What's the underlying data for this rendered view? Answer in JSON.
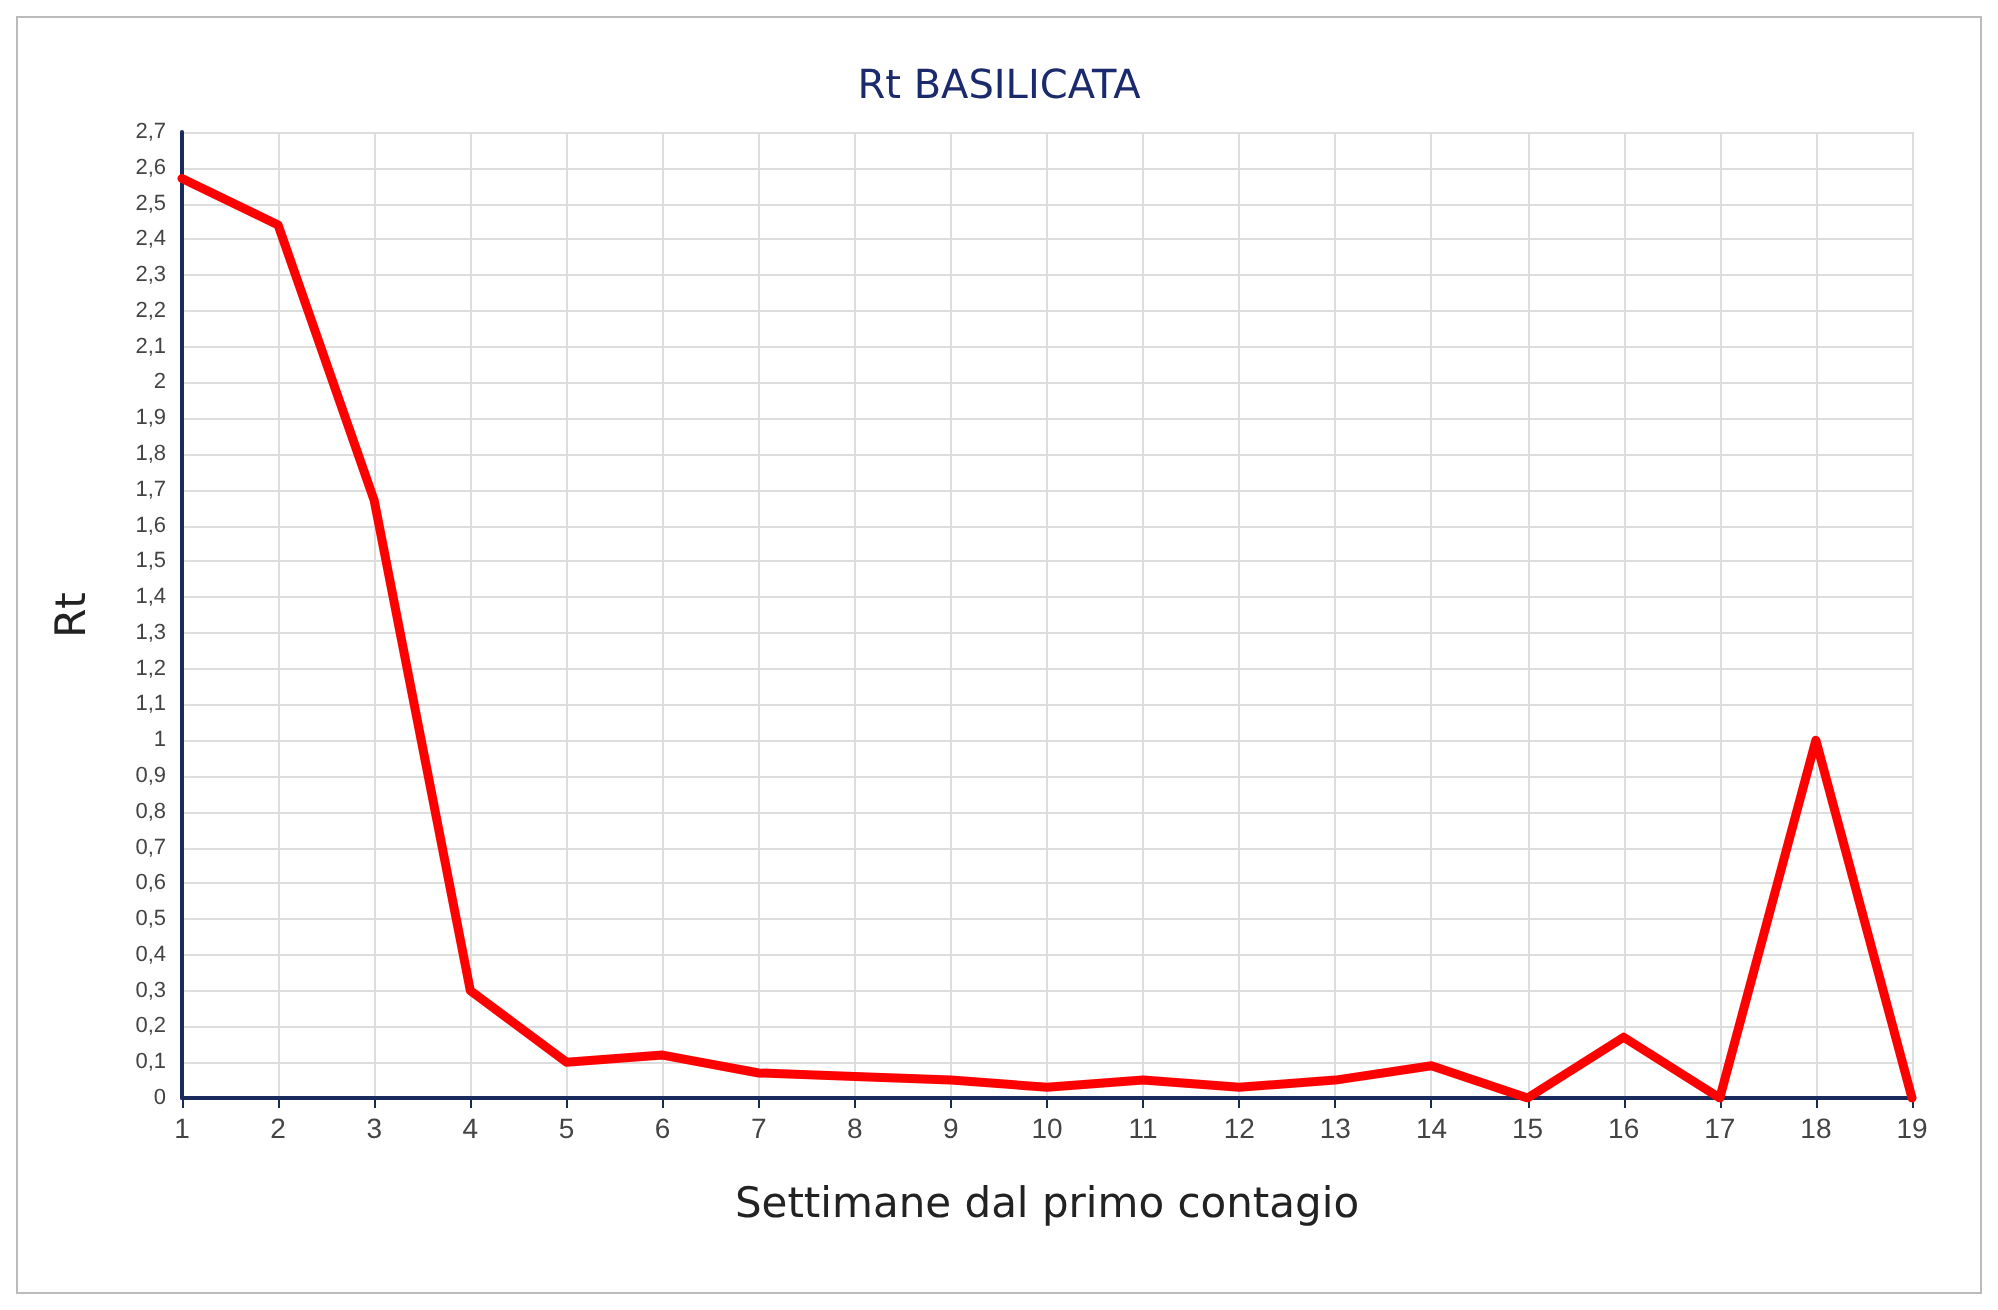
{
  "chart_data": {
    "type": "line",
    "title": "Rt BASILICATA",
    "xlabel": "Settimane dal primo contagio",
    "ylabel": "Rt",
    "x": [
      1,
      2,
      3,
      4,
      5,
      6,
      7,
      8,
      9,
      10,
      11,
      12,
      13,
      14,
      15,
      16,
      17,
      18,
      19
    ],
    "series": [
      {
        "color": "#ff0000",
        "values": [
          2.57,
          2.44,
          1.67,
          0.3,
          0.1,
          0.12,
          0.07,
          0.06,
          0.05,
          0.03,
          0.05,
          0.03,
          0.05,
          0.09,
          0,
          0.17,
          0,
          1,
          0
        ]
      }
    ],
    "xlim": [
      1,
      19
    ],
    "xticks": [
      1,
      2,
      3,
      4,
      5,
      6,
      7,
      8,
      9,
      10,
      11,
      12,
      13,
      14,
      15,
      16,
      17,
      18,
      19
    ],
    "ylim": [
      0,
      2.7
    ],
    "yticks": [
      0,
      {
        "value": 0.1,
        "label": "0,1"
      },
      {
        "value": 0.2,
        "label": "0,2"
      },
      {
        "value": 0.3,
        "label": "0,3"
      },
      {
        "value": 0.4,
        "label": "0,4"
      },
      {
        "value": 0.5,
        "label": "0,5"
      },
      {
        "value": 0.6,
        "label": "0,6"
      },
      {
        "value": 0.7,
        "label": "0,7"
      },
      {
        "value": 0.8,
        "label": "0,8"
      },
      {
        "value": 0.9,
        "label": "0,9"
      },
      1,
      {
        "value": 1.1,
        "label": "1,1"
      },
      {
        "value": 1.2,
        "label": "1,2"
      },
      {
        "value": 1.3,
        "label": "1,3"
      },
      {
        "value": 1.4,
        "label": "1,4"
      },
      {
        "value": 1.5,
        "label": "1,5"
      },
      {
        "value": 1.6,
        "label": "1,6"
      },
      {
        "value": 1.7,
        "label": "1,7"
      },
      {
        "value": 1.8,
        "label": "1,8"
      },
      {
        "value": 1.9,
        "label": "1,9"
      },
      2,
      {
        "value": 2.1,
        "label": "2,1"
      },
      {
        "value": 2.2,
        "label": "2,2"
      },
      {
        "value": 2.3,
        "label": "2,3"
      },
      {
        "value": 2.4,
        "label": "2,4"
      },
      {
        "value": 2.5,
        "label": "2,5"
      },
      {
        "value": 2.6,
        "label": "2,6"
      },
      {
        "value": 2.7,
        "label": "2,7"
      }
    ],
    "grid": true,
    "marker": "none",
    "line_style": "solid"
  }
}
